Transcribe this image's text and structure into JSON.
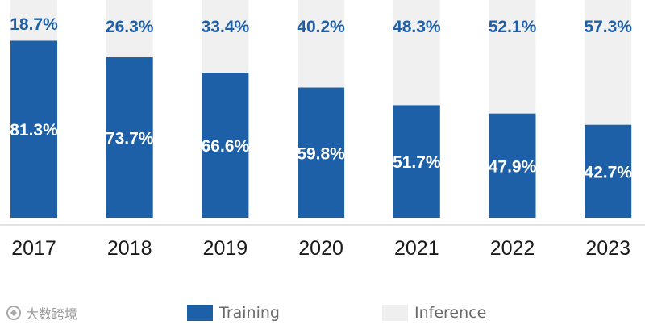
{
  "chart_data": {
    "type": "bar",
    "stacked": true,
    "categories": [
      "2017",
      "2018",
      "2019",
      "2020",
      "2021",
      "2022",
      "2023"
    ],
    "series": [
      {
        "name": "Training",
        "color": "#1e60a8",
        "values": [
          81.3,
          73.7,
          66.6,
          59.8,
          51.7,
          47.9,
          42.7
        ],
        "labels": [
          "81.3%",
          "73.7%",
          "66.6%",
          "59.8%",
          "51.7%",
          "47.9%",
          "42.7%"
        ]
      },
      {
        "name": "Inference",
        "color": "#f0f0f0",
        "values": [
          18.7,
          26.3,
          33.4,
          40.2,
          48.3,
          52.1,
          57.3
        ],
        "labels": [
          "18.7%",
          "26.3%",
          "33.4%",
          "40.2%",
          "48.3%",
          "52.1%",
          "57.3%"
        ]
      }
    ],
    "ylim": [
      0,
      100
    ],
    "grid": false,
    "legend_position": "bottom"
  },
  "legend": {
    "training_label": "Training",
    "inference_label": "Inference"
  },
  "corner_logo_text": "大数跨境"
}
